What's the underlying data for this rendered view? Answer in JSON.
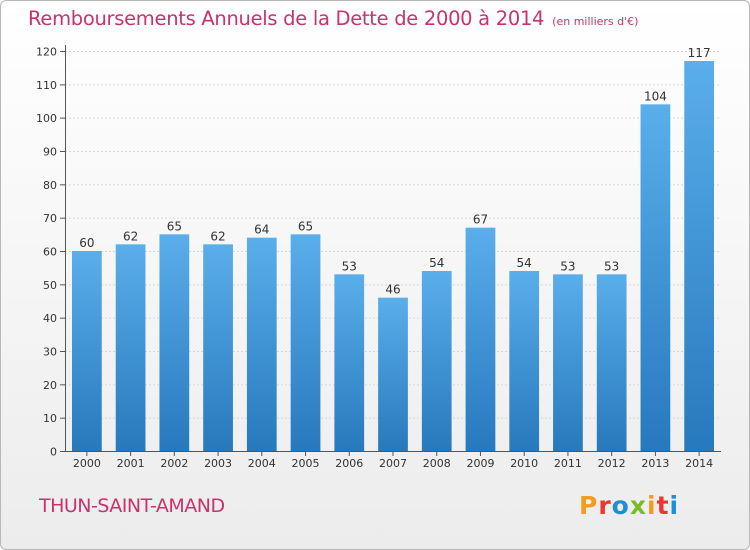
{
  "header": {
    "title": "Remboursements Annuels de la Dette de 2000 à 2014",
    "subtitle": "(en milliers d'€)"
  },
  "footer": {
    "commune": "THUN-SAINT-AMAND",
    "logo_letters": [
      {
        "ch": "P",
        "color": "#f39c1f"
      },
      {
        "ch": "r",
        "color": "#e8382a"
      },
      {
        "ch": "o",
        "color": "#1d8fd4"
      },
      {
        "ch": "x",
        "color": "#7bbb2a"
      },
      {
        "ch": "i",
        "color": "#f39c1f"
      },
      {
        "ch": "t",
        "color": "#e8382a"
      },
      {
        "ch": "i",
        "color": "#1d8fd4"
      }
    ]
  },
  "chart_data": {
    "type": "bar",
    "categories": [
      "2000",
      "2001",
      "2002",
      "2003",
      "2004",
      "2005",
      "2006",
      "2007",
      "2008",
      "2009",
      "2010",
      "2011",
      "2012",
      "2013",
      "2014"
    ],
    "values": [
      60,
      62,
      65,
      62,
      64,
      65,
      53,
      46,
      54,
      67,
      54,
      53,
      53,
      104,
      117
    ],
    "ylim": [
      0,
      120
    ],
    "yticks": [
      0,
      10,
      20,
      30,
      40,
      50,
      60,
      70,
      80,
      90,
      100,
      110,
      120
    ],
    "grid": true,
    "bar_color": "#4a9fe0"
  }
}
